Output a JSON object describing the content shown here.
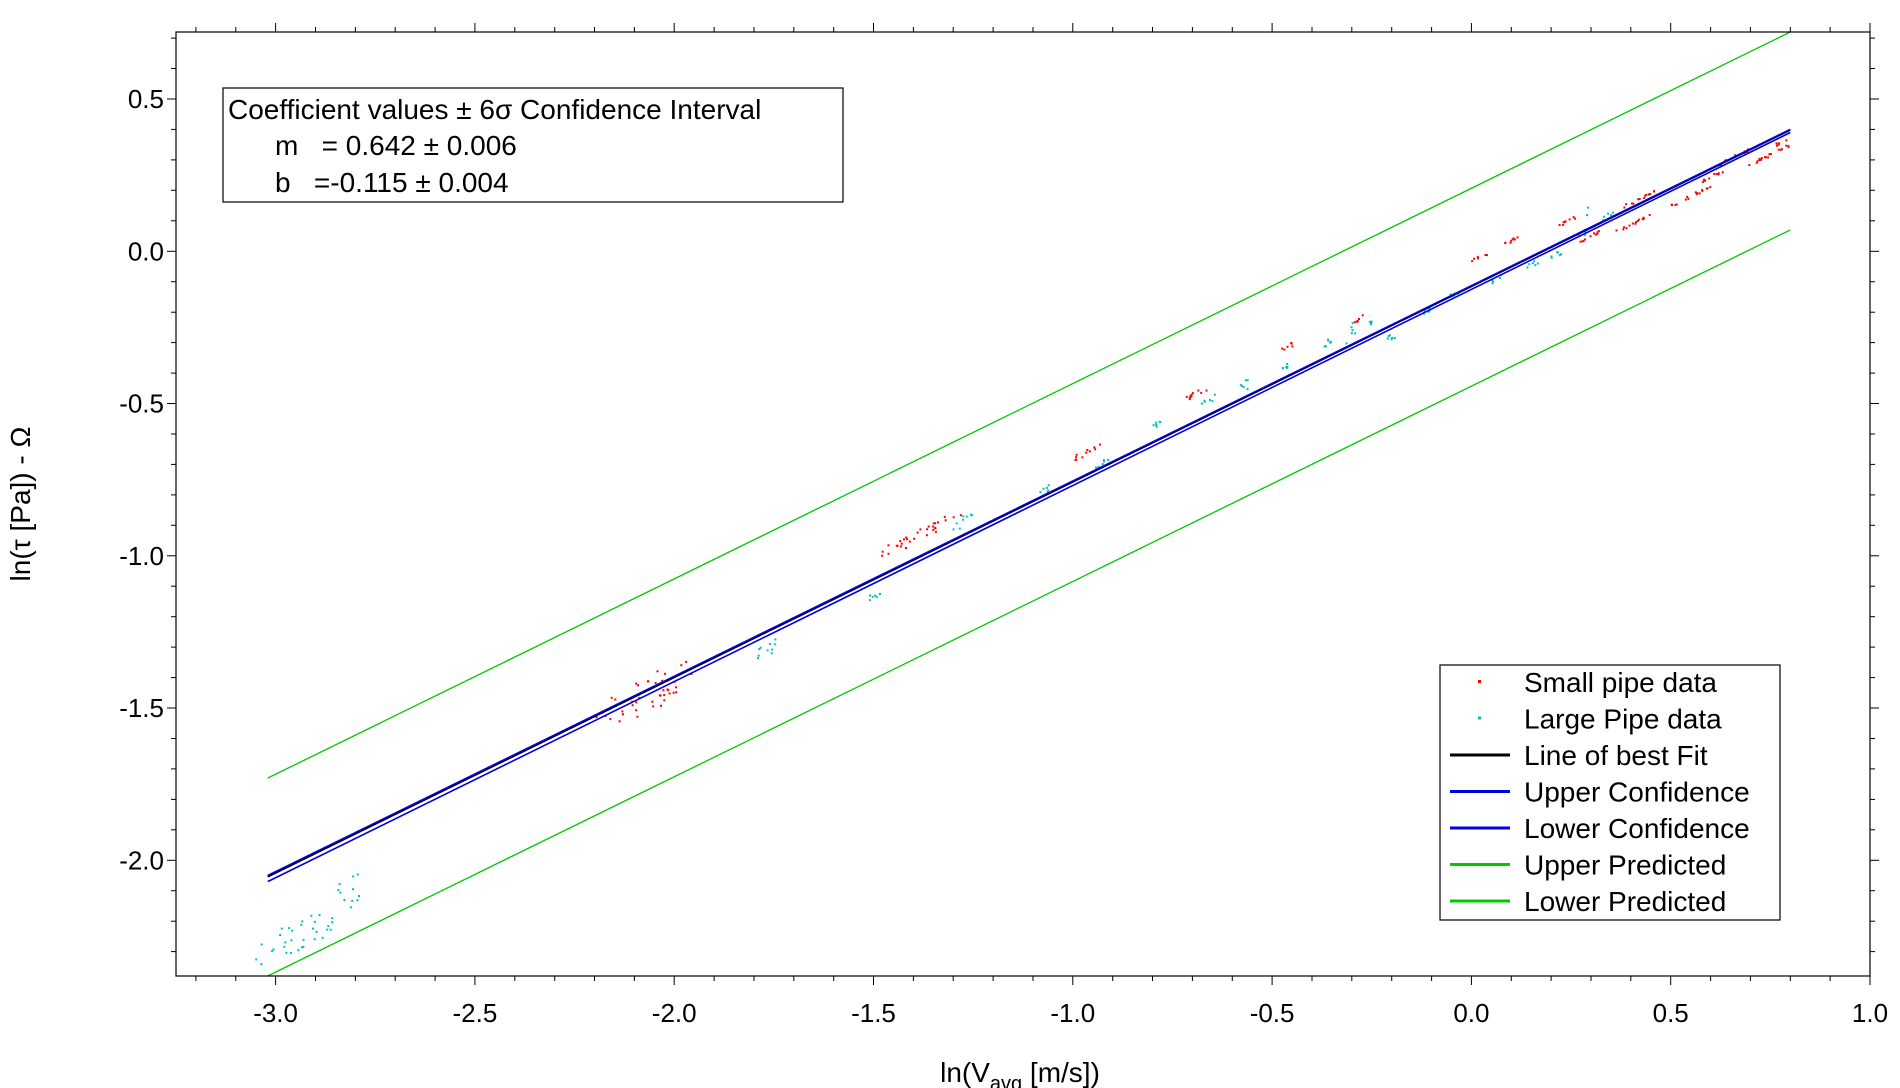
{
  "chart_data": {
    "type": "scatter",
    "title": "",
    "xlabel": {
      "prefix": "ln(V",
      "subscript": "avg",
      "suffix": " [m/s])"
    },
    "ylabel": "ln(τ [Pa]) - Ω",
    "xlim": [
      -3.25,
      1.0
    ],
    "ylim": [
      -2.38,
      0.72
    ],
    "x_ticks": [
      -3.0,
      -2.5,
      -2.0,
      -1.5,
      -1.0,
      -0.5,
      0.0,
      0.5,
      1.0
    ],
    "x_tick_labels": [
      "-3.0",
      "-2.5",
      "-2.0",
      "-1.5",
      "-1.0",
      "-0.5",
      "0.0",
      "0.5",
      "1.0"
    ],
    "y_ticks": [
      -2.0,
      -1.5,
      -1.0,
      -0.5,
      0.0,
      0.5
    ],
    "y_tick_labels": [
      "-2.0",
      "-1.5",
      "-1.0",
      "-0.5",
      "0.0",
      "0.5"
    ],
    "grid": false,
    "legend_position": "bottom-right",
    "coefficient_box": {
      "title": "Coefficient values ± 6σ Confidence Interval",
      "line_m": "m   = 0.642 ± 0.006",
      "line_b": "b   =-0.115 ± 0.004"
    },
    "series": [
      {
        "name": "Small pipe data",
        "kind": "points",
        "color": "#ff0000",
        "clusters": [
          {
            "x": [
              -2.2,
              -1.95
            ],
            "y_at_center": -1.46,
            "spread": 0.06
          },
          {
            "x": [
              -1.48,
              -1.28
            ],
            "y_at_center": -0.93,
            "spread": 0.02
          },
          {
            "x": [
              -1.0,
              -0.93
            ],
            "y_at_center": -0.66,
            "spread": 0.01
          },
          {
            "x": [
              -0.72,
              -0.66
            ],
            "y_at_center": -0.47,
            "spread": 0.01
          },
          {
            "x": [
              -0.48,
              -0.44
            ],
            "y_at_center": -0.31,
            "spread": 0.01
          },
          {
            "x": [
              -0.31,
              -0.27
            ],
            "y_at_center": -0.23,
            "spread": 0.01
          },
          {
            "x": [
              0.0,
              0.04
            ],
            "y_at_center": -0.02,
            "spread": 0.005
          },
          {
            "x": [
              0.07,
              0.12
            ],
            "y_at_center": 0.03,
            "spread": 0.005
          },
          {
            "x": [
              0.22,
              0.27
            ],
            "y_at_center": 0.1,
            "spread": 0.005
          },
          {
            "x": [
              0.27,
              0.33
            ],
            "y_at_center": 0.05,
            "spread": 0.005
          },
          {
            "x": [
              0.36,
              0.45
            ],
            "y_at_center": 0.09,
            "spread": 0.005
          },
          {
            "x": [
              0.38,
              0.46
            ],
            "y_at_center": 0.17,
            "spread": 0.005
          },
          {
            "x": [
              0.5,
              0.6
            ],
            "y_at_center": 0.18,
            "spread": 0.005
          },
          {
            "x": [
              0.58,
              0.64
            ],
            "y_at_center": 0.25,
            "spread": 0.005
          },
          {
            "x": [
              0.62,
              0.7
            ],
            "y_at_center": 0.31,
            "spread": 0.005
          },
          {
            "x": [
              0.68,
              0.8
            ],
            "y_at_center": 0.31,
            "spread": 0.005
          },
          {
            "x": [
              0.76,
              0.8
            ],
            "y_at_center": 0.36,
            "spread": 0.005
          }
        ]
      },
      {
        "name": "Large Pipe data",
        "kind": "points",
        "color": "#00c0c0",
        "clusters": [
          {
            "x": [
              -3.05,
              -2.85
            ],
            "y_at_center": -2.25,
            "spread": 0.05
          },
          {
            "x": [
              -2.85,
              -2.78
            ],
            "y_at_center": -2.1,
            "spread": 0.06
          },
          {
            "x": [
              -1.8,
              -1.74
            ],
            "y_at_center": -1.31,
            "spread": 0.02
          },
          {
            "x": [
              -1.52,
              -1.48
            ],
            "y_at_center": -1.13,
            "spread": 0.02
          },
          {
            "x": [
              -1.3,
              -1.25
            ],
            "y_at_center": -0.89,
            "spread": 0.02
          },
          {
            "x": [
              -1.1,
              -1.06
            ],
            "y_at_center": -0.79,
            "spread": 0.01
          },
          {
            "x": [
              -0.95,
              -0.91
            ],
            "y_at_center": -0.7,
            "spread": 0.01
          },
          {
            "x": [
              -0.8,
              -0.78
            ],
            "y_at_center": -0.57,
            "spread": 0.01
          },
          {
            "x": [
              -0.68,
              -0.64
            ],
            "y_at_center": -0.49,
            "spread": 0.01
          },
          {
            "x": [
              -0.58,
              -0.56
            ],
            "y_at_center": -0.44,
            "spread": 0.02
          },
          {
            "x": [
              -0.48,
              -0.46
            ],
            "y_at_center": -0.38,
            "spread": 0.01
          },
          {
            "x": [
              -0.37,
              -0.35
            ],
            "y_at_center": -0.3,
            "spread": 0.01
          },
          {
            "x": [
              -0.32,
              -0.29
            ],
            "y_at_center": -0.25,
            "spread": 0.05
          },
          {
            "x": [
              -0.26,
              -0.25
            ],
            "y_at_center": -0.24,
            "spread": 0.01
          },
          {
            "x": [
              -0.21,
              -0.19
            ],
            "y_at_center": -0.28,
            "spread": 0.01
          },
          {
            "x": [
              -0.12,
              -0.09
            ],
            "y_at_center": -0.19,
            "spread": 0.01
          },
          {
            "x": [
              -0.06,
              -0.03
            ],
            "y_at_center": -0.14,
            "spread": 0.01
          },
          {
            "x": [
              0.05,
              0.09
            ],
            "y_at_center": -0.09,
            "spread": 0.01
          },
          {
            "x": [
              0.14,
              0.17
            ],
            "y_at_center": -0.04,
            "spread": 0.01
          },
          {
            "x": [
              0.2,
              0.23
            ],
            "y_at_center": -0.01,
            "spread": 0.01
          },
          {
            "x": [
              0.27,
              0.3
            ],
            "y_at_center": 0.1,
            "spread": 0.05
          },
          {
            "x": [
              0.33,
              0.36
            ],
            "y_at_center": 0.12,
            "spread": 0.01
          }
        ]
      },
      {
        "name": "Line of best Fit",
        "kind": "line",
        "color": "#000000",
        "slope": 0.642,
        "intercept": -0.115,
        "x": [
          -3.02,
          0.8
        ]
      },
      {
        "name": "Upper Confidence",
        "kind": "line",
        "color": "#0000e0",
        "x": [
          -3.02,
          0.8
        ],
        "y": [
          -2.05,
          0.4
        ]
      },
      {
        "name": "Lower Confidence",
        "kind": "line",
        "color": "#0000e0",
        "x": [
          -3.02,
          0.8
        ],
        "y": [
          -2.07,
          0.39
        ]
      },
      {
        "name": "Upper Predicted",
        "kind": "line",
        "color": "#00c800",
        "x": [
          -3.02,
          0.8
        ],
        "y": [
          -1.73,
          0.72
        ]
      },
      {
        "name": "Lower Predicted",
        "kind": "line",
        "color": "#00c800",
        "x": [
          -3.02,
          0.8
        ],
        "y": [
          -2.38,
          0.07
        ]
      }
    ]
  }
}
